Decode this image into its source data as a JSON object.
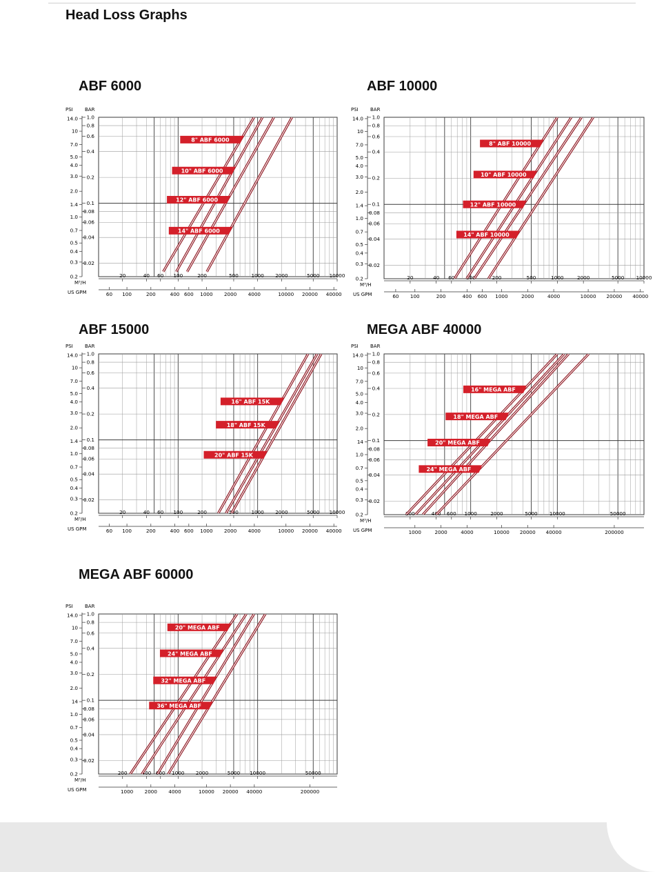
{
  "page": {
    "title": "Head Loss Graphs"
  },
  "theme": {
    "curve_color": "#8e1620",
    "label_bg": "#d4202a",
    "label_text": "#ffffff",
    "grid_major": "#3a3a3a",
    "grid_minor": "#9a9a9a"
  },
  "chart_data": [
    {
      "id": "abf6000",
      "title": "ABF 6000",
      "type": "line",
      "scale": "log-log",
      "ylabel_left": "PSI",
      "ylabel_right": "BAR",
      "xlabel_top": "M³/H",
      "xlabel_bottom": "US GPM",
      "ylim_bar": [
        0.014,
        1.0
      ],
      "xlim_m3h": [
        10,
        10000
      ],
      "bar_ticks": [
        "1.0",
        "0.8",
        "0.6",
        "0.4",
        "0.2",
        "0.1",
        "0.08",
        "0.06",
        "0.04",
        "0.02"
      ],
      "bar_tick_values": [
        1.0,
        0.8,
        0.6,
        0.4,
        0.2,
        0.1,
        0.08,
        0.06,
        0.04,
        0.02
      ],
      "psi_ticks": [
        "14.0",
        "10",
        "7.0",
        "5.0",
        "4.0",
        "3.0",
        "2.0",
        "1.4",
        "1.0",
        "0.7",
        "0.5",
        "0.4",
        "0.3",
        "0.2"
      ],
      "m3h_ticks": [
        "20",
        "40",
        "60",
        "100",
        "200",
        "500",
        "1000",
        "2000",
        "5000",
        "10000"
      ],
      "m3h_tick_values": [
        20,
        40,
        60,
        100,
        200,
        500,
        1000,
        2000,
        5000,
        10000
      ],
      "gpm_ticks": [
        "60",
        "100",
        "200",
        "400",
        "600",
        "1000",
        "2000",
        "4000",
        "10000",
        "20000",
        "40000"
      ],
      "gpm_tick_values": [
        60,
        100,
        200,
        400,
        600,
        1000,
        2000,
        4000,
        10000,
        20000,
        40000
      ],
      "series": [
        {
          "name": "8\" ABF 6000",
          "label_y_bar": 0.55,
          "points": [
            [
              65,
              0.016
            ],
            [
              900,
              1.0
            ]
          ]
        },
        {
          "name": "10\" ABF 6000",
          "label_y_bar": 0.24,
          "points": [
            [
              95,
              0.016
            ],
            [
              1150,
              1.0
            ]
          ]
        },
        {
          "name": "12\" ABF 6000",
          "label_y_bar": 0.11,
          "points": [
            [
              130,
              0.016
            ],
            [
              1600,
              1.0
            ]
          ]
        },
        {
          "name": "14\" ABF 6000",
          "label_y_bar": 0.048,
          "points": [
            [
              230,
              0.016
            ],
            [
              2700,
              1.0
            ]
          ]
        }
      ]
    },
    {
      "id": "abf10000",
      "title": "ABF 10000",
      "type": "line",
      "scale": "log-log",
      "ylabel_left": "PSI",
      "ylabel_right": "BAR",
      "xlabel_top": "M³/H",
      "xlabel_bottom": "US GPM",
      "ylim_bar": [
        0.014,
        1.0
      ],
      "xlim_m3h": [
        10,
        10000
      ],
      "bar_ticks": [
        "1.0",
        "0.8",
        "0.6",
        "0.4",
        "0.2",
        "0.1",
        "0.08",
        "0.06",
        "0.04",
        "0.02"
      ],
      "bar_tick_values": [
        1.0,
        0.8,
        0.6,
        0.4,
        0.2,
        0.1,
        0.08,
        0.06,
        0.04,
        0.02
      ],
      "psi_ticks": [
        "14.0",
        "10",
        "7.0",
        "5.0",
        "4.0",
        "3.0",
        "2.0",
        "1.4",
        "1.0",
        "0.7",
        "0.5",
        "0.4",
        "0.3",
        "0.2"
      ],
      "m3h_ticks": [
        "20",
        "40",
        "60",
        "100",
        "200",
        "500",
        "1000",
        "2000",
        "5000",
        "10000"
      ],
      "m3h_tick_values": [
        20,
        40,
        60,
        100,
        200,
        500,
        1000,
        2000,
        5000,
        10000
      ],
      "gpm_ticks": [
        "60",
        "100",
        "200",
        "400",
        "600",
        "1000",
        "2000",
        "4000",
        "10000",
        "20000",
        "40000"
      ],
      "gpm_tick_values": [
        60,
        100,
        200,
        400,
        600,
        1000,
        2000,
        4000,
        10000,
        20000,
        40000
      ],
      "series": [
        {
          "name": "8\" ABF 10000",
          "label_y_bar": 0.5,
          "points": [
            [
              65,
              0.014
            ],
            [
              1000,
              1.0
            ]
          ]
        },
        {
          "name": "10\" ABF 10000",
          "label_y_bar": 0.22,
          "points": [
            [
              90,
              0.014
            ],
            [
              1450,
              1.0
            ]
          ]
        },
        {
          "name": "12\" ABF 10000",
          "label_y_bar": 0.1,
          "points": [
            [
              110,
              0.014
            ],
            [
              1900,
              1.0
            ]
          ]
        },
        {
          "name": "14\" ABF 10000",
          "label_y_bar": 0.045,
          "points": [
            [
              160,
              0.014
            ],
            [
              2600,
              1.0
            ]
          ]
        }
      ]
    },
    {
      "id": "abf15000",
      "title": "ABF 15000",
      "type": "line",
      "scale": "log-log",
      "ylabel_left": "PSI",
      "ylabel_right": "BAR",
      "xlabel_top": "M³/H",
      "xlabel_bottom": "US GPM",
      "ylim_bar": [
        0.014,
        1.0
      ],
      "xlim_m3h": [
        10,
        10000
      ],
      "bar_ticks": [
        "1.0",
        "0.8",
        "0.6",
        "0.4",
        "0.2",
        "0.1",
        "0.08",
        "0.06",
        "0.04",
        "0.02"
      ],
      "bar_tick_values": [
        1.0,
        0.8,
        0.6,
        0.4,
        0.2,
        0.1,
        0.08,
        0.06,
        0.04,
        0.02
      ],
      "psi_ticks": [
        "14.0",
        "10",
        "7.0",
        "5.0",
        "4.0",
        "3.0",
        "2.0",
        "1.4",
        "1.0",
        "0.7",
        "0.5",
        "0.4",
        "0.3",
        "0.2"
      ],
      "m3h_ticks": [
        "20",
        "40",
        "60",
        "100",
        "200",
        "500",
        "1000",
        "2000",
        "5000",
        "10000"
      ],
      "m3h_tick_values": [
        20,
        40,
        60,
        100,
        200,
        500,
        1000,
        2000,
        5000,
        10000
      ],
      "gpm_ticks": [
        "60",
        "100",
        "200",
        "400",
        "600",
        "1000",
        "2000",
        "4000",
        "10000",
        "20000",
        "40000"
      ],
      "gpm_tick_values": [
        60,
        100,
        200,
        400,
        600,
        1000,
        2000,
        4000,
        10000,
        20000,
        40000
      ],
      "series": [
        {
          "name": "16\" ABF 15K",
          "label_y_bar": 0.28,
          "points": [
            [
              320,
              0.014
            ],
            [
              4300,
              1.0
            ]
          ]
        },
        {
          "name": "18\" ABF 15K",
          "label_y_bar": 0.15,
          "points": [
            [
              400,
              0.014
            ],
            [
              5600,
              1.0
            ]
          ]
        },
        {
          "name": "20\" ABF 15K",
          "label_y_bar": 0.067,
          "points": [
            [
              470,
              0.014
            ],
            [
              6300,
              1.0
            ]
          ]
        }
      ]
    },
    {
      "id": "megaabf40000",
      "title": "MEGA ABF 40000",
      "type": "line",
      "scale": "log-log",
      "ylabel_left": "PSI",
      "ylabel_right": "BAR",
      "xlabel_top": "M³/H",
      "xlabel_bottom": "US GPM",
      "ylim_bar": [
        0.014,
        1.0
      ],
      "xlim_m3h": [
        100,
        100000
      ],
      "bar_ticks": [
        "1.0",
        "0.8",
        "0.6",
        "0.4",
        "0.2",
        "0.1",
        "0.08",
        "0.06",
        "0.04",
        "0.02"
      ],
      "bar_tick_values": [
        1.0,
        0.8,
        0.6,
        0.4,
        0.2,
        0.1,
        0.08,
        0.06,
        0.04,
        0.02
      ],
      "psi_ticks": [
        "14.0",
        "10",
        "7.0",
        "5.0",
        "4.0",
        "3.0",
        "2.0",
        "14",
        "1.0",
        "0.7",
        "0.5",
        "0.4",
        "0.3",
        "0.2"
      ],
      "m3h_ticks": [
        "200",
        "400",
        "600",
        "1000",
        "2000",
        "5000",
        "10000",
        "50000"
      ],
      "m3h_tick_values": [
        200,
        400,
        600,
        1000,
        2000,
        5000,
        10000,
        50000
      ],
      "gpm_ticks": [
        "1000",
        "2000",
        "4000",
        "10000",
        "20000",
        "40000",
        "200000"
      ],
      "gpm_tick_values": [
        1000,
        2000,
        4000,
        10000,
        20000,
        40000,
        200000
      ],
      "series": [
        {
          "name": "16\" MEGA ABF",
          "label_y_bar": 0.39,
          "points": [
            [
              180,
              0.014
            ],
            [
              10000,
              1.0
            ]
          ]
        },
        {
          "name": "18\" MEGA ABF",
          "label_y_bar": 0.19,
          "points": [
            [
              230,
              0.014
            ],
            [
              12000,
              1.0
            ]
          ]
        },
        {
          "name": "20\" MEGA ABF",
          "label_y_bar": 0.095,
          "points": [
            [
              280,
              0.014
            ],
            [
              13500,
              1.0
            ]
          ]
        },
        {
          "name": "24\" MEGA ABF",
          "label_y_bar": 0.047,
          "points": [
            [
              400,
              0.014
            ],
            [
              23000,
              1.0
            ]
          ]
        }
      ]
    },
    {
      "id": "megaabf60000",
      "title": "MEGA ABF 60000",
      "type": "line",
      "scale": "log-log",
      "ylabel_left": "PSI",
      "ylabel_right": "BAR",
      "xlabel_top": "M³/H",
      "xlabel_bottom": "US GPM",
      "ylim_bar": [
        0.014,
        1.0
      ],
      "xlim_m3h": [
        100,
        100000
      ],
      "bar_ticks": [
        "1.0",
        "0.8",
        "0.6",
        "0.4",
        "0.2",
        "0.1",
        "0.08",
        "0.06",
        "0.04",
        "0.02"
      ],
      "bar_tick_values": [
        1.0,
        0.8,
        0.6,
        0.4,
        0.2,
        0.1,
        0.08,
        0.06,
        0.04,
        0.02
      ],
      "psi_ticks": [
        "14.0",
        "10",
        "7.0",
        "5.0",
        "4.0",
        "3.0",
        "2.0",
        "14",
        "1.0",
        "0.7",
        "0.5",
        "0.4",
        "0.3",
        "0.2"
      ],
      "m3h_ticks": [
        "200",
        "400",
        "600",
        "1000",
        "2000",
        "5000",
        "10000",
        "50000"
      ],
      "m3h_tick_values": [
        200,
        400,
        600,
        1000,
        2000,
        5000,
        10000,
        50000
      ],
      "gpm_ticks": [
        "1000",
        "2000",
        "4000",
        "10000",
        "20000",
        "40000",
        "200000"
      ],
      "gpm_tick_values": [
        1000,
        2000,
        4000,
        10000,
        20000,
        40000,
        200000
      ],
      "series": [
        {
          "name": "20\" MEGA ABF",
          "label_y_bar": 0.7,
          "points": [
            [
              250,
              0.014
            ],
            [
              5500,
              1.0
            ]
          ]
        },
        {
          "name": "24\" MEGA ABF",
          "label_y_bar": 0.35,
          "points": [
            [
              350,
              0.014
            ],
            [
              7200,
              1.0
            ]
          ]
        },
        {
          "name": "32\" MEGA ABF",
          "label_y_bar": 0.17,
          "points": [
            [
              550,
              0.014
            ],
            [
              9000,
              1.0
            ]
          ]
        },
        {
          "name": "36\" MEGA ABF",
          "label_y_bar": 0.087,
          "points": [
            [
              750,
              0.014
            ],
            [
              12500,
              1.0
            ]
          ]
        }
      ]
    }
  ]
}
